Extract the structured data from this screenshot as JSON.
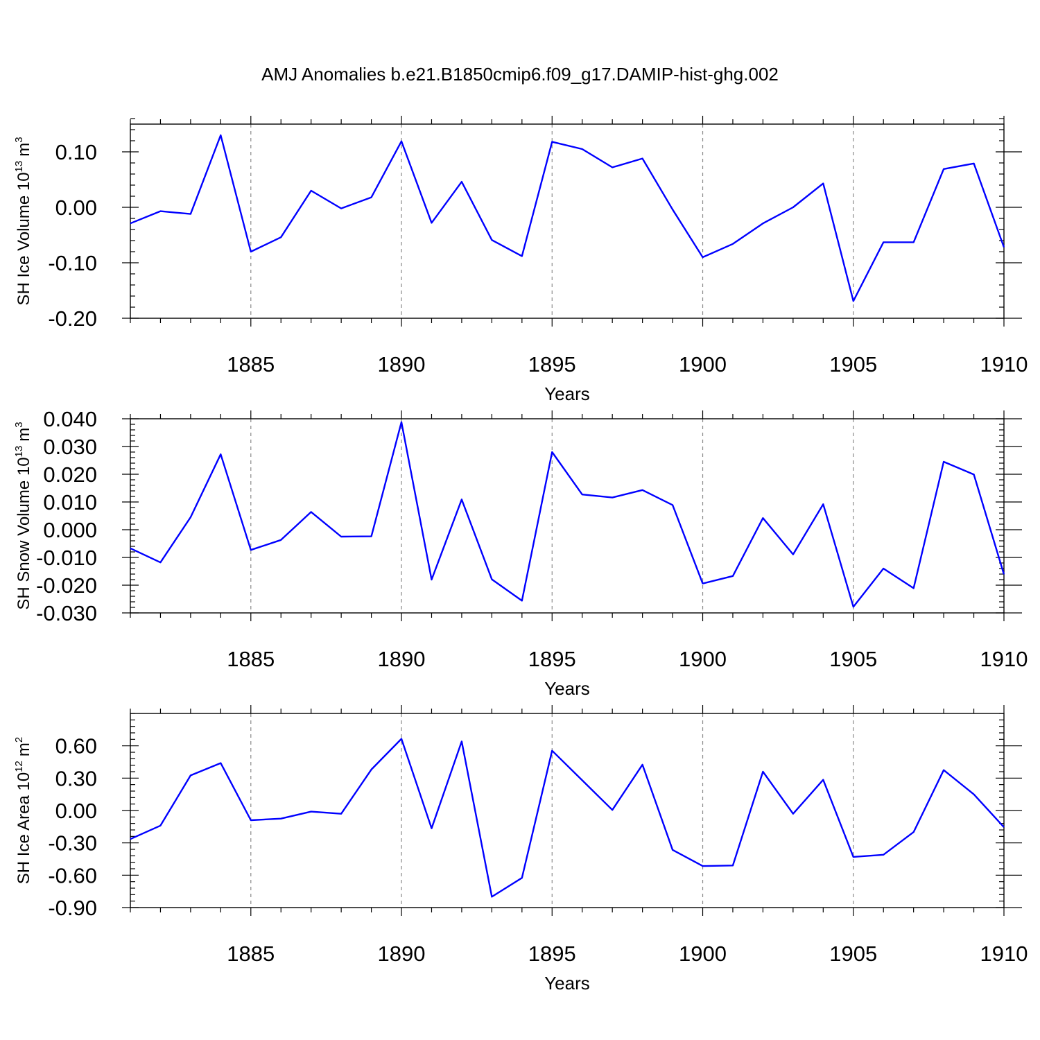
{
  "chart_data": [
    {
      "type": "line",
      "title": "AMJ Anomalies b.e21.B1850cmip6.f09_g17.DAMIP-hist-ghg.002",
      "xlabel": "Years",
      "ylabel_main": "SH Ice Volume 10",
      "ylabel_exp": "13",
      "ylabel_unit": "m",
      "ylabel_unit_exp": "3",
      "xlim": [
        1881,
        1910
      ],
      "ylim": [
        -0.2,
        0.15
      ],
      "x_ticks": [
        1885,
        1890,
        1895,
        1900,
        1905,
        1910
      ],
      "x_tick_labels": [
        "1885",
        "1890",
        "1895",
        "1900",
        "1905",
        "1910"
      ],
      "y_ticks": [
        -0.2,
        -0.1,
        0.0,
        0.1
      ],
      "y_tick_labels": [
        "-0.20",
        "-0.10",
        "0.00",
        "0.10"
      ],
      "y_minor_step": 0.02,
      "vgrid": true,
      "color": "#0000ff",
      "x": [
        1881,
        1882,
        1883,
        1884,
        1885,
        1886,
        1887,
        1888,
        1889,
        1890,
        1891,
        1892,
        1893,
        1894,
        1895,
        1896,
        1897,
        1898,
        1899,
        1900,
        1901,
        1902,
        1903,
        1904,
        1905,
        1906,
        1907,
        1908,
        1909,
        1910
      ],
      "values": [
        -0.029,
        -0.007,
        -0.012,
        0.13,
        -0.08,
        -0.054,
        0.03,
        -0.002,
        0.018,
        0.119,
        -0.028,
        0.046,
        -0.059,
        -0.088,
        0.118,
        0.105,
        0.072,
        0.088,
        -0.004,
        -0.09,
        -0.066,
        -0.029,
        0.0,
        0.043,
        -0.169,
        -0.063,
        -0.063,
        0.069,
        0.079,
        -0.072
      ]
    },
    {
      "type": "line",
      "title": "",
      "xlabel": "Years",
      "ylabel_main": "SH Snow Volume 10",
      "ylabel_exp": "13",
      "ylabel_unit": "m",
      "ylabel_unit_exp": "3",
      "xlim": [
        1881,
        1910
      ],
      "ylim": [
        -0.03,
        0.04
      ],
      "x_ticks": [
        1885,
        1890,
        1895,
        1900,
        1905,
        1910
      ],
      "x_tick_labels": [
        "1885",
        "1890",
        "1895",
        "1900",
        "1905",
        "1910"
      ],
      "y_ticks": [
        -0.03,
        -0.02,
        -0.01,
        0.0,
        0.01,
        0.02,
        0.03,
        0.04
      ],
      "y_tick_labels": [
        "-0.030",
        "-0.020",
        "-0.010",
        "0.000",
        "0.010",
        "0.020",
        "0.030",
        "0.040"
      ],
      "y_minor_step": 0.002,
      "vgrid": true,
      "color": "#0000ff",
      "x": [
        1881,
        1882,
        1883,
        1884,
        1885,
        1886,
        1887,
        1888,
        1889,
        1890,
        1891,
        1892,
        1893,
        1894,
        1895,
        1896,
        1897,
        1898,
        1899,
        1900,
        1901,
        1902,
        1903,
        1904,
        1905,
        1906,
        1907,
        1908,
        1909,
        1910
      ],
      "values": [
        -0.0067,
        -0.0118,
        0.0045,
        0.0272,
        -0.0073,
        -0.0037,
        0.0064,
        -0.0025,
        -0.0024,
        0.0388,
        -0.018,
        0.0109,
        -0.0179,
        -0.0256,
        0.028,
        0.0127,
        0.0116,
        0.0143,
        0.0089,
        -0.0194,
        -0.0167,
        0.0042,
        -0.0089,
        0.0092,
        -0.0278,
        -0.014,
        -0.0211,
        0.0245,
        0.0199,
        -0.0161
      ]
    },
    {
      "type": "line",
      "title": "",
      "xlabel": "Years",
      "ylabel_main": "SH Ice Area 10",
      "ylabel_exp": "12",
      "ylabel_unit": "m",
      "ylabel_unit_exp": "2",
      "xlim": [
        1881,
        1910
      ],
      "ylim": [
        -0.9,
        0.9
      ],
      "x_ticks": [
        1885,
        1890,
        1895,
        1900,
        1905,
        1910
      ],
      "x_tick_labels": [
        "1885",
        "1890",
        "1895",
        "1900",
        "1905",
        "1910"
      ],
      "y_ticks": [
        -0.9,
        -0.6,
        -0.3,
        0.0,
        0.3,
        0.6
      ],
      "y_tick_labels": [
        "-0.90",
        "-0.60",
        "-0.30",
        "0.00",
        "0.30",
        "0.60"
      ],
      "y_minor_step": 0.06,
      "vgrid": true,
      "color": "#0000ff",
      "x": [
        1881,
        1882,
        1883,
        1884,
        1885,
        1886,
        1887,
        1888,
        1889,
        1890,
        1891,
        1892,
        1893,
        1894,
        1895,
        1896,
        1897,
        1898,
        1899,
        1900,
        1901,
        1902,
        1903,
        1904,
        1905,
        1906,
        1907,
        1908,
        1909,
        1910
      ],
      "values": [
        -0.265,
        -0.14,
        0.325,
        0.44,
        -0.09,
        -0.075,
        -0.01,
        -0.03,
        0.38,
        0.665,
        -0.165,
        0.64,
        -0.8,
        -0.625,
        0.555,
        0.28,
        0.005,
        0.425,
        -0.365,
        -0.515,
        -0.51,
        0.36,
        -0.03,
        0.285,
        -0.43,
        -0.41,
        -0.2,
        0.375,
        0.15,
        -0.155
      ]
    }
  ]
}
